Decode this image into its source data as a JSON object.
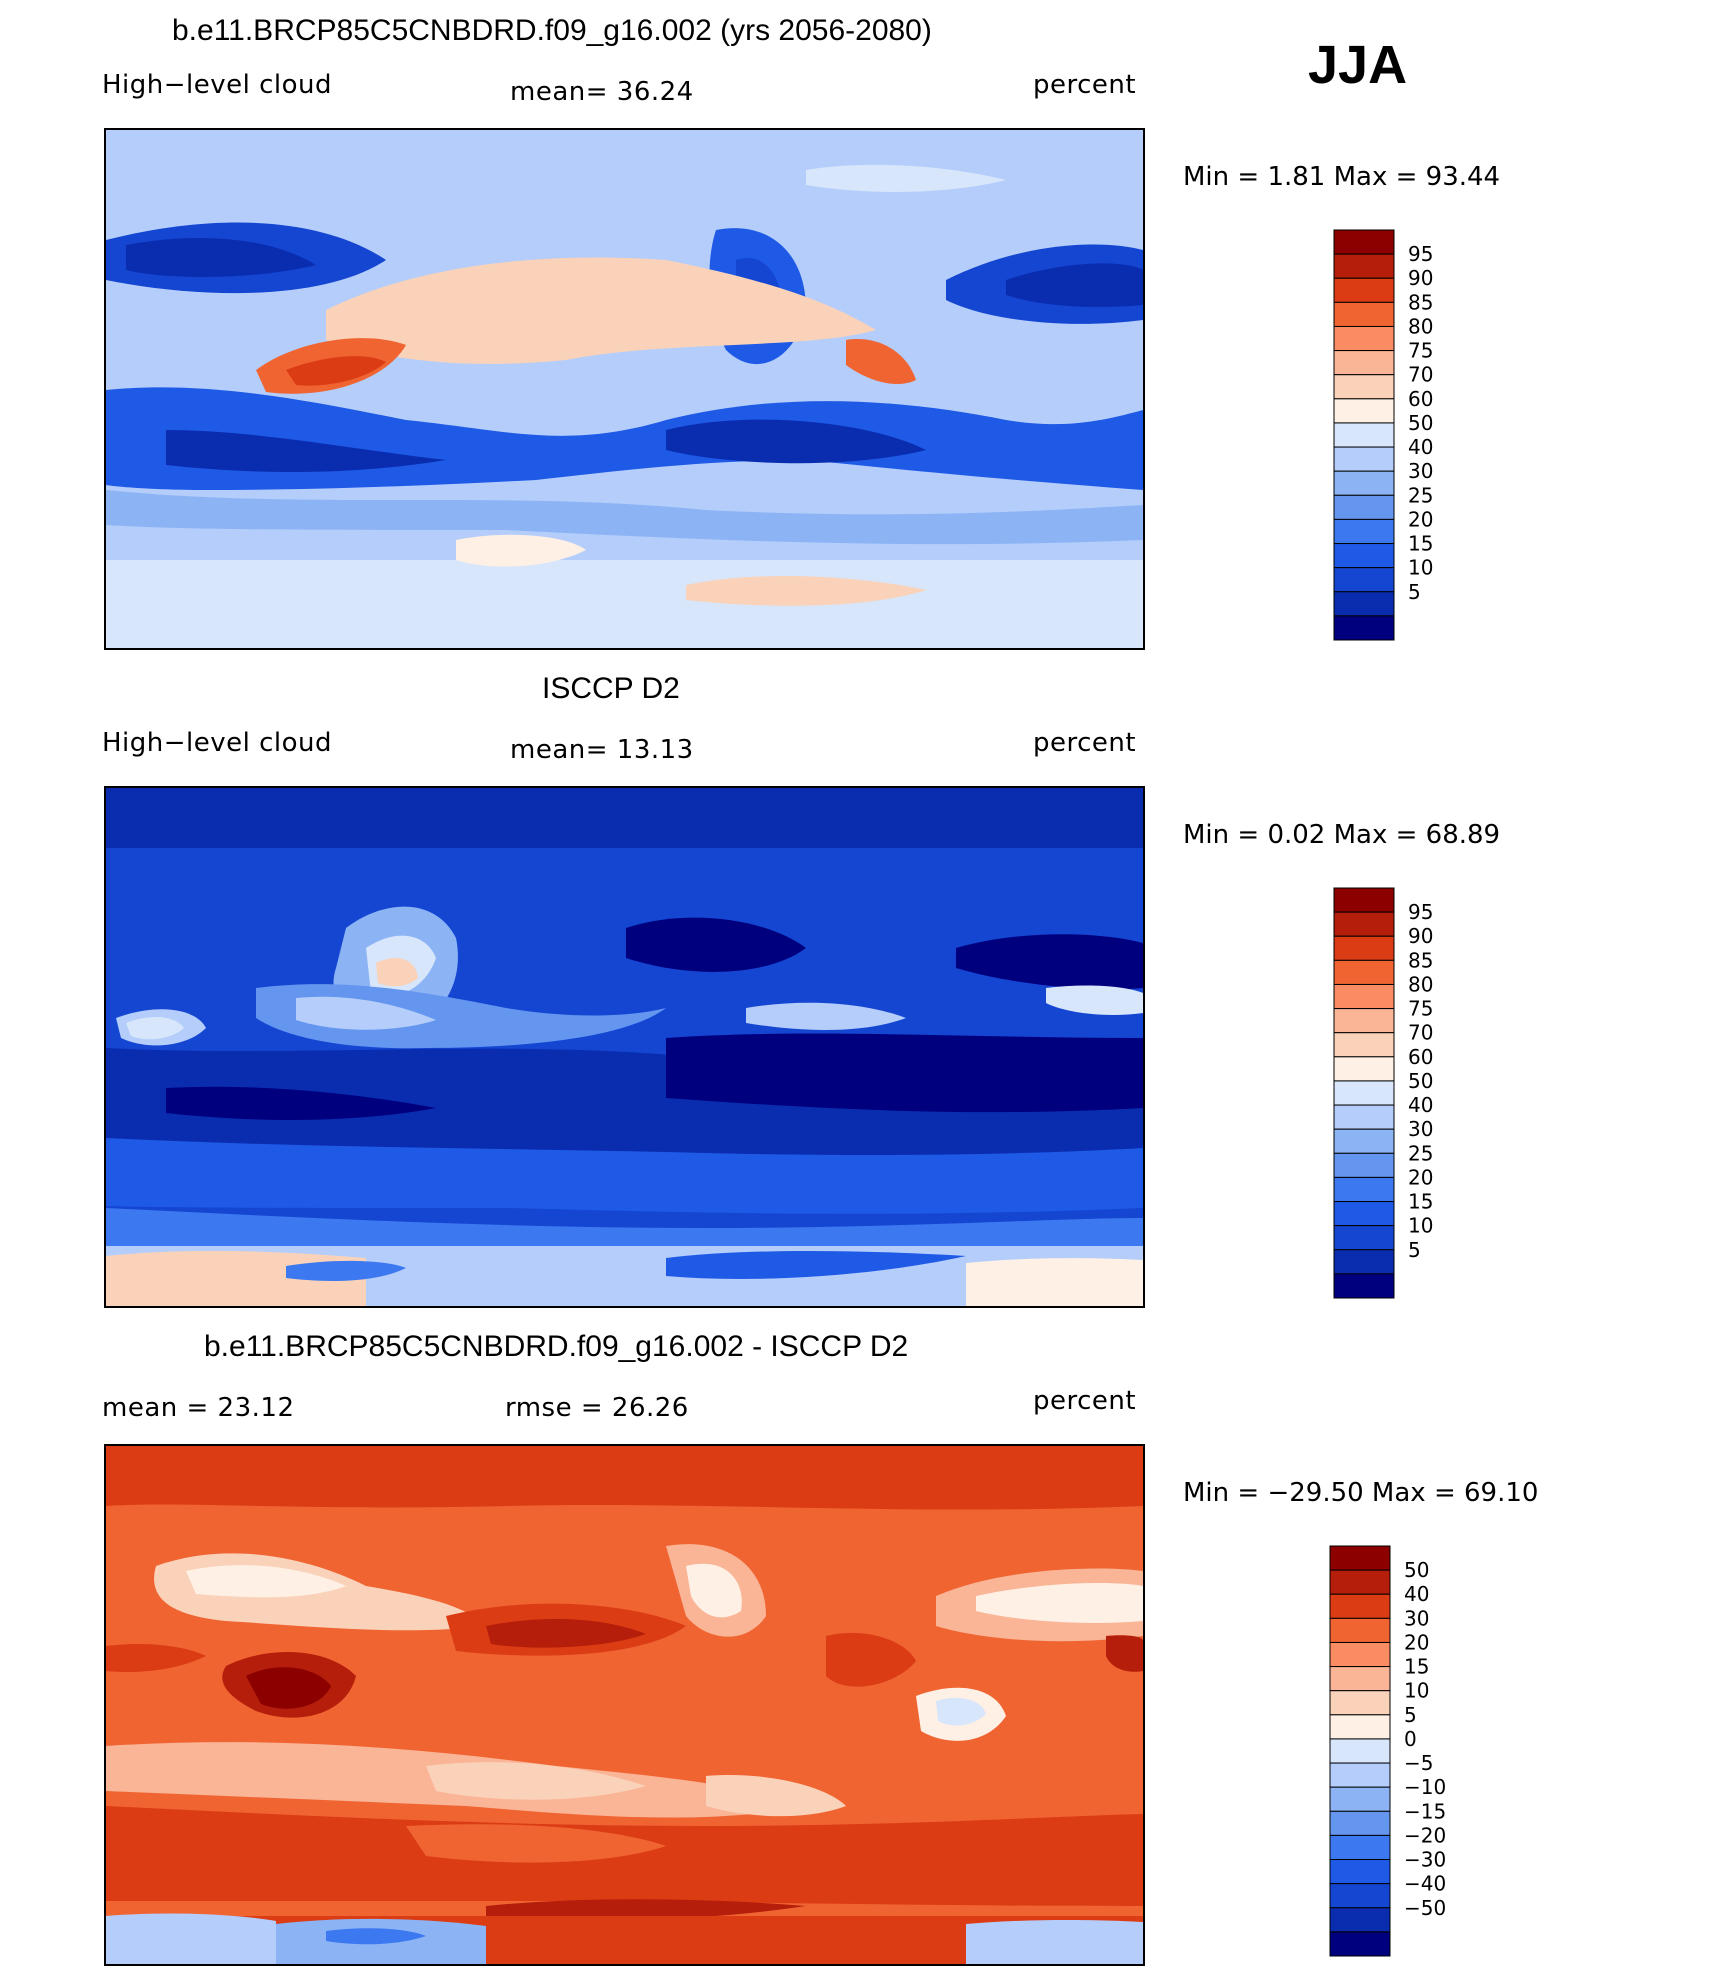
{
  "season": "JJA",
  "units": "percent",
  "panels": [
    {
      "title": "b.e11.BRCP85C5CNBDRD.f09_g16.002 (yrs 2056-2080)",
      "left_label": "High−level cloud",
      "mid_label": "mean=  36.24",
      "right_label": "percent",
      "minmax": "Min =    1.81  Max =   93.44",
      "palette": [
        "#00007f",
        "#0a2db0",
        "#1446d2",
        "#1e5ae6",
        "#3c78f0",
        "#6496f0",
        "#8cb4f5",
        "#b4cdfa",
        "#d7e6fa",
        "#fff0e6",
        "#fad2b9",
        "#fab496",
        "#fa8c64",
        "#f06432",
        "#dc3c14",
        "#b41e0a",
        "#8c0000"
      ],
      "labels": [
        "95",
        "90",
        "85",
        "80",
        "75",
        "70",
        "60",
        "50",
        "40",
        "30",
        "25",
        "20",
        "15",
        "10",
        "5"
      ],
      "map_style": "model"
    },
    {
      "title": "ISCCP D2",
      "left_label": "High−level cloud",
      "mid_label": "mean=  13.13",
      "right_label": "percent",
      "minmax": "Min =    0.02  Max =   68.89",
      "palette": [
        "#00007f",
        "#0a2db0",
        "#1446d2",
        "#1e5ae6",
        "#3c78f0",
        "#6496f0",
        "#8cb4f5",
        "#b4cdfa",
        "#d7e6fa",
        "#fff0e6",
        "#fad2b9",
        "#fab496",
        "#fa8c64",
        "#f06432",
        "#dc3c14",
        "#b41e0a",
        "#8c0000"
      ],
      "labels": [
        "95",
        "90",
        "85",
        "80",
        "75",
        "70",
        "60",
        "50",
        "40",
        "30",
        "25",
        "20",
        "15",
        "10",
        "5"
      ],
      "map_style": "obs"
    },
    {
      "title": "b.e11.BRCP85C5CNBDRD.f09_g16.002 - ISCCP D2",
      "left_label": "mean =   23.12",
      "mid_label": "rmse =   26.26",
      "right_label": "percent",
      "minmax": "Min = −29.50  Max =   69.10",
      "palette": [
        "#00007f",
        "#0a2db0",
        "#1446d2",
        "#1e5ae6",
        "#3c78f0",
        "#6496f0",
        "#8cb4f5",
        "#b4cdfa",
        "#d7e6fa",
        "#fff0e6",
        "#fad2b9",
        "#fab496",
        "#fa8c64",
        "#f06432",
        "#dc3c14",
        "#b41e0a",
        "#8c0000"
      ],
      "labels": [
        "50",
        "40",
        "30",
        "20",
        "15",
        "10",
        "5",
        "0",
        "−5",
        "−10",
        "−15",
        "−20",
        "−30",
        "−40",
        "−50"
      ],
      "map_style": "diff"
    }
  ]
}
